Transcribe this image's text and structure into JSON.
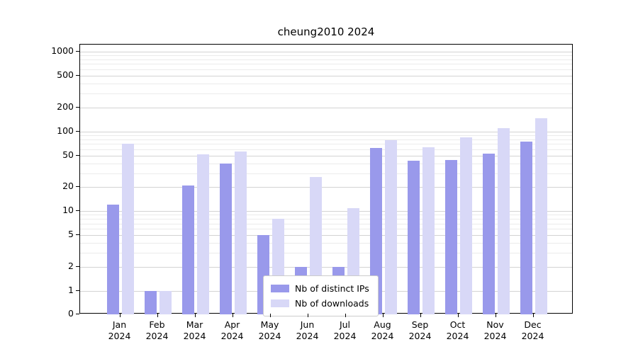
{
  "chart_data": {
    "type": "bar",
    "title": "cheung2010 2024",
    "year_label": "2024",
    "categories": [
      "Jan",
      "Feb",
      "Mar",
      "Apr",
      "May",
      "Jun",
      "Jul",
      "Aug",
      "Sep",
      "Oct",
      "Nov",
      "Dec"
    ],
    "series": [
      {
        "name": "Nb of distinct IPs",
        "color": "#9999eb",
        "values": [
          12,
          1,
          21,
          40,
          5,
          2,
          2,
          62,
          43,
          44,
          53,
          75
        ]
      },
      {
        "name": "Nb of downloads",
        "color": "#d8d8f7",
        "values": [
          70,
          1,
          52,
          56,
          8,
          27,
          11,
          78,
          63,
          85,
          110,
          145
        ]
      }
    ],
    "yscale": "symlog",
    "yticks": [
      0,
      1,
      2,
      5,
      10,
      20,
      50,
      100,
      200,
      500,
      1000
    ],
    "ylim": [
      0,
      1200
    ],
    "grid": true,
    "legend_position": "lower center",
    "colors": {
      "grid_major": "#d3d3d3",
      "grid_minor": "#ebebeb",
      "axis": "#000000"
    }
  }
}
